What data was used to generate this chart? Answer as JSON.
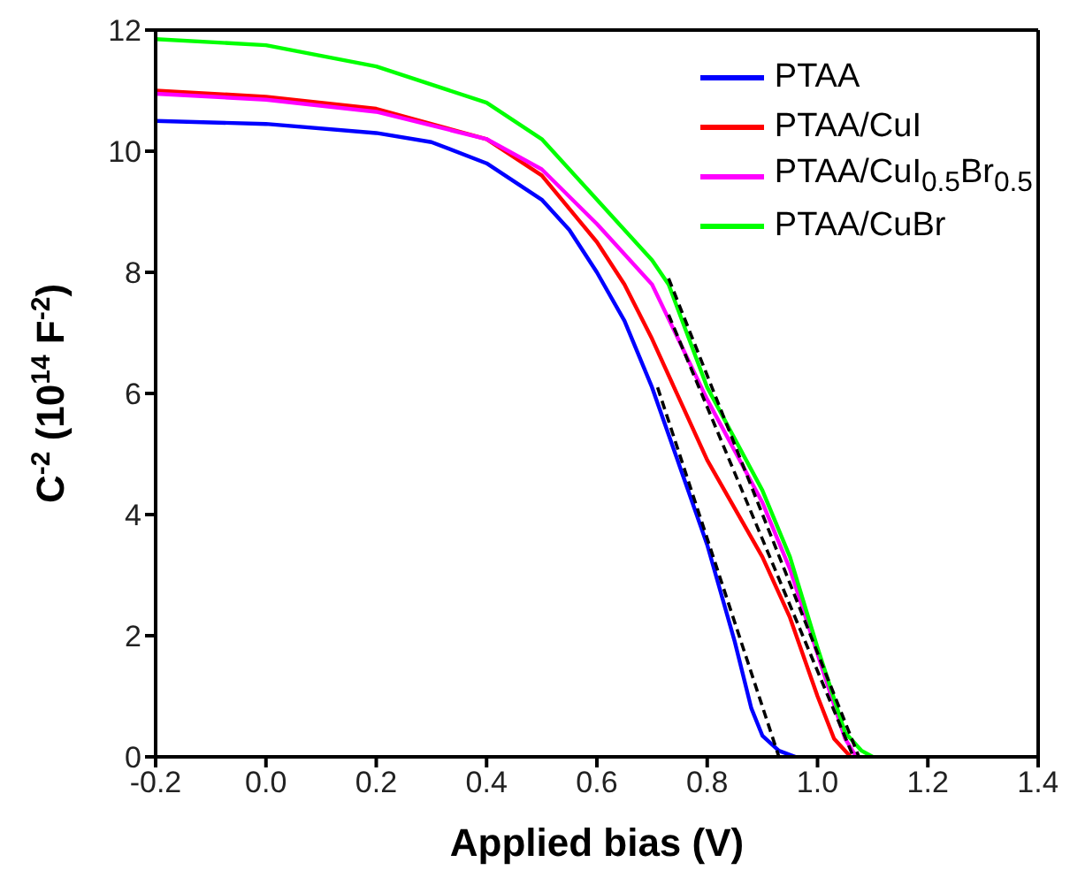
{
  "chart_data": {
    "type": "line",
    "xlabel": "Applied bias (V)",
    "ylabel": "C$^{-2}$ (10$^{14}$ F$^{-2}$)",
    "xlim": [
      -0.2,
      1.4
    ],
    "xticks": [
      -0.2,
      {
        "value": 0,
        "label": "0.0"
      },
      0.2,
      0.4,
      0.6,
      0.8,
      {
        "value": 1,
        "label": "1.0"
      },
      1.2,
      1.4
    ],
    "ylim": [
      0,
      12
    ],
    "yticks": [
      0,
      2,
      4,
      6,
      8,
      10,
      12
    ],
    "grid": false,
    "legend": "top right",
    "marker": "none",
    "line_style": "solid",
    "series": [
      {
        "name": "PTAA",
        "color": "#0000ff",
        "x": [
          -0.2,
          0,
          0.2,
          0.3,
          0.4,
          0.5,
          0.55,
          0.6,
          0.65,
          0.7,
          0.75,
          0.8,
          0.85,
          0.88,
          0.9,
          0.93,
          0.96
        ],
        "values": [
          10.5,
          10.45,
          10.3,
          10.15,
          9.8,
          9.2,
          8.7,
          8.0,
          7.2,
          6.1,
          4.8,
          3.5,
          1.9,
          0.8,
          0.35,
          0.1,
          0
        ]
      },
      {
        "name": "PTAA/CuI",
        "color": "#ff0000",
        "x": [
          -0.2,
          0,
          0.2,
          0.4,
          0.5,
          0.6,
          0.65,
          0.7,
          0.75,
          0.8,
          0.85,
          0.9,
          0.95,
          1.0,
          1.03,
          1.06
        ],
        "values": [
          11.0,
          10.9,
          10.7,
          10.2,
          9.6,
          8.5,
          7.8,
          6.9,
          5.9,
          4.9,
          4.1,
          3.3,
          2.3,
          1.0,
          0.3,
          0
        ]
      },
      {
        "name": "PTAA/CuI$_{0.5}$Br$_{0.5}$",
        "color": "#ff00ff",
        "x": [
          -0.2,
          0,
          0.2,
          0.4,
          0.5,
          0.6,
          0.7,
          0.8,
          0.9,
          0.95,
          1.0,
          1.05,
          1.07
        ],
        "values": [
          10.95,
          10.85,
          10.65,
          10.2,
          9.7,
          8.8,
          7.8,
          5.9,
          4.2,
          3.1,
          1.7,
          0.3,
          0
        ]
      },
      {
        "name": "PTAA/CuBr",
        "color": "#00ff00",
        "x": [
          -0.2,
          0,
          0.2,
          0.4,
          0.5,
          0.6,
          0.7,
          0.73,
          0.8,
          0.9,
          0.95,
          1.0,
          1.05,
          1.08,
          1.1
        ],
        "values": [
          11.85,
          11.75,
          11.4,
          10.8,
          10.2,
          9.2,
          8.2,
          7.8,
          6.1,
          4.4,
          3.3,
          1.8,
          0.4,
          0.1,
          0
        ]
      },
      {
        "color": "#000000",
        "line_style": "dashed",
        "x": [
          0.71,
          0.93
        ],
        "values": [
          6.1,
          0
        ]
      },
      {
        "color": "#000000",
        "line_style": "dashed",
        "x": [
          0.73,
          1.065
        ],
        "values": [
          7.3,
          0
        ]
      },
      {
        "color": "#000000",
        "line_style": "dashed",
        "x": [
          0.73,
          1.075
        ],
        "values": [
          7.9,
          0
        ]
      }
    ]
  }
}
